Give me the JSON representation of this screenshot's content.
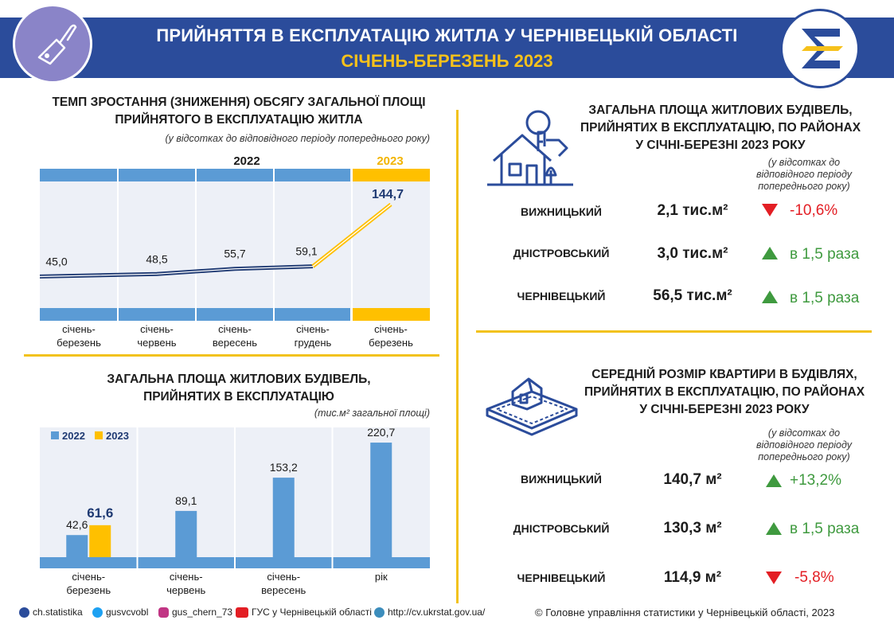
{
  "header": {
    "title": "ПРИЙНЯТТЯ В ЕКСПЛУАТАЦІЮ ЖИТЛА У ЧЕРНІВЕЦЬКІЙ ОБЛАСТІ",
    "subtitle": "СІЧЕНЬ-БЕРЕЗЕНЬ 2023",
    "colors": {
      "primary": "#2b4c9b",
      "accent": "#f6c11b",
      "badge": "#8a84c8"
    }
  },
  "growth": {
    "title_line1": "ТЕМП ЗРОСТАННЯ (ЗНИЖЕННЯ) ОБСЯГУ ЗАГАЛЬНОЇ ПЛОЩІ",
    "title_line2": "ПРИЙНЯТОГО В ЕКСПЛУАТАЦІЮ ЖИТЛА",
    "note": "(у відсотках до відповідного періоду попереднього року)",
    "year_2022": "2022",
    "year_2023": "2023"
  },
  "area": {
    "title_line1": "ЗАГАЛЬНА ПЛОЩА ЖИТЛОВИХ БУДІВЕЛЬ,",
    "title_line2": "ПРИЙНЯТИХ В ЕКСПЛУАТАЦІЮ",
    "note": "(тис.м² загальної площі)"
  },
  "chart_data": [
    {
      "type": "line",
      "categories": [
        "січень-березень",
        "січень-червень",
        "січень-вересень",
        "січень-грудень",
        "січень-березень"
      ],
      "series": [
        {
          "name": "2022",
          "values": [
            45.0,
            48.5,
            55.7,
            59.1,
            null
          ],
          "labels": [
            "45,0",
            "48,5",
            "55,7",
            "59,1",
            ""
          ]
        },
        {
          "name": "2023",
          "values": [
            null,
            null,
            null,
            59.1,
            144.7
          ],
          "labels": [
            "",
            "",
            "",
            "",
            "144,7"
          ]
        }
      ],
      "title": "ТЕМП ЗРОСТАННЯ (ЗНИЖЕННЯ) ОБСЯГУ ЗАГАЛЬНОЇ ПЛОЩІ ПРИЙНЯТОГО В ЕКСПЛУАТАЦІЮ ЖИТЛА",
      "grid": true
    },
    {
      "type": "bar",
      "categories": [
        "січень-березень",
        "січень-червень",
        "січень-вересень",
        "рік"
      ],
      "series": [
        {
          "name": "2022",
          "values": [
            42.6,
            89.1,
            153.2,
            220.7
          ],
          "labels": [
            "42,6",
            "89,1",
            "153,2",
            "220,7"
          ]
        },
        {
          "name": "2023",
          "values": [
            61.6,
            null,
            null,
            null
          ],
          "labels": [
            "61,6",
            "",
            "",
            ""
          ]
        }
      ],
      "title": "ЗАГАЛЬНА ПЛОЩА ЖИТЛОВИХ БУДІВЕЛЬ, ПРИЙНЯТИХ В ЕКСПЛУАТАЦІЮ",
      "legend": "top-left",
      "colors": {
        "2022": "#5b9bd5",
        "2023": "#ffc000"
      }
    }
  ],
  "districts_area": {
    "title_line1": "ЗАГАЛЬНА ПЛОЩА ЖИТЛОВИХ БУДІВЕЛЬ,",
    "title_line2": "ПРИЙНЯТИХ В ЕКСПЛУАТАЦІЮ, ПО РАЙОНАХ",
    "title_line3": "У СІЧНІ-БЕРЕЗНІ 2023 РОКУ",
    "note_line1": "(у відсотках до",
    "note_line2": "відповідного періоду",
    "note_line3": "попереднього року)",
    "rows": [
      {
        "name": "ВИЖНИЦЬКИЙ",
        "value": "2,1 тис.м²",
        "direction": "down",
        "change": "-10,6%"
      },
      {
        "name": "ДНІСТРОВСЬКИЙ",
        "value": "3,0 тис.м²",
        "direction": "up",
        "change": "в 1,5 раза"
      },
      {
        "name": "ЧЕРНІВЕЦЬКИЙ",
        "value": "56,5 тис.м²",
        "direction": "up",
        "change": "в 1,5 раза"
      }
    ]
  },
  "districts_size": {
    "title_line1": "СЕРЕДНІЙ РОЗМІР КВАРТИРИ В БУДІВЛЯХ,",
    "title_line2": "ПРИЙНЯТИХ В ЕКСПЛУАТАЦІЮ, ПО РАЙОНАХ",
    "title_line3": "У СІЧНІ-БЕРЕЗНІ 2023 РОКУ",
    "note_line1": "(у відсотках до",
    "note_line2": "відповідного періоду",
    "note_line3": "попереднього року)",
    "rows": [
      {
        "name": "ВИЖНИЦЬКИЙ",
        "value": "140,7 м²",
        "direction": "up",
        "change": "+13,2%"
      },
      {
        "name": "ДНІСТРОВСЬКИЙ",
        "value": "130,3 м²",
        "direction": "up",
        "change": "в 1,5 раза"
      },
      {
        "name": "ЧЕРНІВЕЦЬКИЙ",
        "value": "114,9 м²",
        "direction": "down",
        "change": "-5,8%"
      }
    ]
  },
  "footer": {
    "facebook": "ch.statistika",
    "twitter": "gusvcvobl",
    "instagram": "gus_chern_73",
    "youtube": "ГУС у Чернівецькій області",
    "website": "http://cv.ukrstat.gov.ua/",
    "copyright": "© Головне управління статистики у Чернівецькій області, 2023"
  }
}
